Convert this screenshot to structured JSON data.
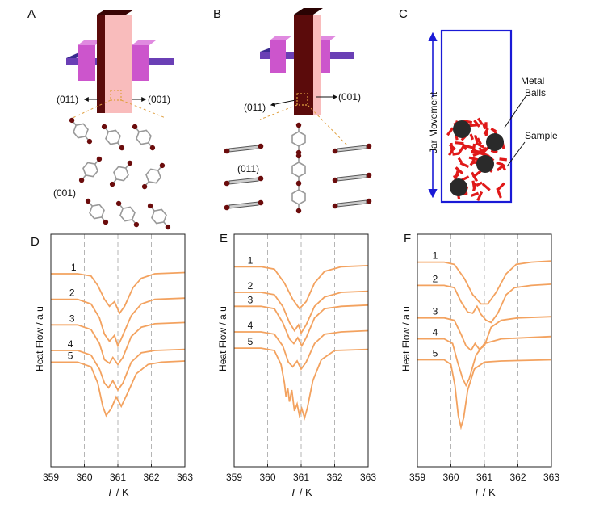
{
  "panels_top": {
    "A": {
      "letter": "A",
      "dir_left": "(011)",
      "dir_right": "(001)",
      "plane_label": "(001)"
    },
    "B": {
      "letter": "B",
      "dir_left": "(011)",
      "dir_right": "(001)",
      "plane_label": "(011)"
    },
    "C": {
      "letter": "C",
      "jar_label": "Jar Movement",
      "balls_label_line1": "Metal",
      "balls_label_line2": "Balls",
      "sample_label": "Sample"
    }
  },
  "colors": {
    "curve": "#f3a25f",
    "crystal_light": "#f9bcbc",
    "crystal_dark": "#5b0b0b",
    "holder_purple": "#6a3fb5",
    "holder_pink": "#cc55cc",
    "jar_border": "#1a1ad6",
    "arrow_blue": "#1a1ad6",
    "sample_red": "#e01919",
    "ball": "#2a2a2a"
  },
  "chart_data": [
    {
      "panel": "D",
      "type": "line",
      "xlabel_italic": "T",
      "xlabel_rest": " / K",
      "ylabel": "Heat Flow / a.u",
      "xticks": [
        "359",
        "360",
        "361",
        "362",
        "363"
      ],
      "xlim": [
        359,
        363
      ],
      "grid_x": [
        360,
        361,
        362
      ],
      "series": [
        {
          "name": "1",
          "label_x": 359.6,
          "y_base": 0.83,
          "points": [
            [
              359,
              0.83
            ],
            [
              359.8,
              0.83
            ],
            [
              360.2,
              0.82
            ],
            [
              360.4,
              0.78
            ],
            [
              360.6,
              0.72
            ],
            [
              360.75,
              0.69
            ],
            [
              360.9,
              0.71
            ],
            [
              361.05,
              0.66
            ],
            [
              361.2,
              0.69
            ],
            [
              361.45,
              0.77
            ],
            [
              361.7,
              0.81
            ],
            [
              362.1,
              0.83
            ],
            [
              363,
              0.835
            ]
          ]
        },
        {
          "name": "2",
          "label_x": 359.55,
          "y_base": 0.72,
          "points": [
            [
              359,
              0.72
            ],
            [
              359.8,
              0.72
            ],
            [
              360.2,
              0.7
            ],
            [
              360.45,
              0.64
            ],
            [
              360.6,
              0.57
            ],
            [
              360.75,
              0.54
            ],
            [
              360.9,
              0.565
            ],
            [
              361.0,
              0.52
            ],
            [
              361.1,
              0.55
            ],
            [
              361.4,
              0.65
            ],
            [
              361.7,
              0.7
            ],
            [
              362.1,
              0.72
            ],
            [
              363,
              0.725
            ]
          ]
        },
        {
          "name": "3",
          "label_x": 359.55,
          "y_base": 0.61,
          "points": [
            [
              359,
              0.61
            ],
            [
              359.8,
              0.61
            ],
            [
              360.2,
              0.59
            ],
            [
              360.45,
              0.53
            ],
            [
              360.6,
              0.46
            ],
            [
              360.75,
              0.445
            ],
            [
              360.85,
              0.47
            ],
            [
              361.0,
              0.44
            ],
            [
              361.15,
              0.47
            ],
            [
              361.4,
              0.56
            ],
            [
              361.7,
              0.6
            ],
            [
              362.1,
              0.615
            ],
            [
              363,
              0.62
            ]
          ]
        },
        {
          "name": "4",
          "label_x": 359.5,
          "y_base": 0.5,
          "points": [
            [
              359,
              0.5
            ],
            [
              359.8,
              0.5
            ],
            [
              360.2,
              0.48
            ],
            [
              360.45,
              0.42
            ],
            [
              360.6,
              0.36
            ],
            [
              360.72,
              0.34
            ],
            [
              360.85,
              0.37
            ],
            [
              361.0,
              0.33
            ],
            [
              361.15,
              0.36
            ],
            [
              361.4,
              0.45
            ],
            [
              361.7,
              0.49
            ],
            [
              362.1,
              0.5
            ],
            [
              363,
              0.505
            ]
          ]
        },
        {
          "name": "5",
          "label_x": 359.5,
          "y_base": 0.45,
          "points": [
            [
              359,
              0.45
            ],
            [
              359.8,
              0.45
            ],
            [
              360.2,
              0.43
            ],
            [
              360.4,
              0.36
            ],
            [
              360.55,
              0.26
            ],
            [
              360.65,
              0.22
            ],
            [
              360.8,
              0.25
            ],
            [
              360.95,
              0.3
            ],
            [
              361.1,
              0.26
            ],
            [
              361.3,
              0.32
            ],
            [
              361.55,
              0.4
            ],
            [
              361.9,
              0.44
            ],
            [
              362.3,
              0.45
            ],
            [
              363,
              0.455
            ]
          ]
        }
      ]
    },
    {
      "panel": "E",
      "type": "line",
      "xlabel_italic": "T",
      "xlabel_rest": " / K",
      "ylabel": "Heat Flow / a.u",
      "xticks": [
        "359",
        "360",
        "361",
        "362",
        "363"
      ],
      "xlim": [
        359,
        363
      ],
      "grid_x": [
        360,
        361,
        362
      ],
      "series": [
        {
          "name": "1",
          "label_x": 359.4,
          "y_base": 0.86,
          "points": [
            [
              359,
              0.86
            ],
            [
              359.8,
              0.86
            ],
            [
              360.2,
              0.85
            ],
            [
              360.5,
              0.79
            ],
            [
              360.75,
              0.72
            ],
            [
              360.95,
              0.68
            ],
            [
              361.15,
              0.71
            ],
            [
              361.4,
              0.79
            ],
            [
              361.7,
              0.84
            ],
            [
              362.2,
              0.86
            ],
            [
              363,
              0.865
            ]
          ]
        },
        {
          "name": "2",
          "label_x": 359.4,
          "y_base": 0.75,
          "points": [
            [
              359,
              0.75
            ],
            [
              359.8,
              0.75
            ],
            [
              360.2,
              0.74
            ],
            [
              360.45,
              0.69
            ],
            [
              360.65,
              0.62
            ],
            [
              360.8,
              0.585
            ],
            [
              360.92,
              0.61
            ],
            [
              361.0,
              0.575
            ],
            [
              361.15,
              0.61
            ],
            [
              361.4,
              0.69
            ],
            [
              361.7,
              0.73
            ],
            [
              362.2,
              0.75
            ],
            [
              363,
              0.755
            ]
          ]
        },
        {
          "name": "3",
          "label_x": 359.4,
          "y_base": 0.69,
          "points": [
            [
              359,
              0.69
            ],
            [
              359.8,
              0.69
            ],
            [
              360.2,
              0.68
            ],
            [
              360.45,
              0.62
            ],
            [
              360.65,
              0.55
            ],
            [
              360.78,
              0.53
            ],
            [
              360.9,
              0.555
            ],
            [
              361.02,
              0.52
            ],
            [
              361.15,
              0.555
            ],
            [
              361.4,
              0.64
            ],
            [
              361.7,
              0.68
            ],
            [
              362.2,
              0.69
            ],
            [
              363,
              0.695
            ]
          ]
        },
        {
          "name": "4",
          "label_x": 359.4,
          "y_base": 0.58,
          "points": [
            [
              359,
              0.58
            ],
            [
              359.8,
              0.58
            ],
            [
              360.2,
              0.57
            ],
            [
              360.45,
              0.52
            ],
            [
              360.62,
              0.45
            ],
            [
              360.75,
              0.43
            ],
            [
              360.88,
              0.455
            ],
            [
              361.0,
              0.42
            ],
            [
              361.15,
              0.45
            ],
            [
              361.4,
              0.53
            ],
            [
              361.7,
              0.57
            ],
            [
              362.2,
              0.58
            ],
            [
              363,
              0.585
            ]
          ]
        },
        {
          "name": "5",
          "label_x": 359.4,
          "y_base": 0.51,
          "points": [
            [
              359,
              0.51
            ],
            [
              359.8,
              0.51
            ],
            [
              360.2,
              0.5
            ],
            [
              360.4,
              0.44
            ],
            [
              360.5,
              0.36
            ],
            [
              360.55,
              0.3
            ],
            [
              360.6,
              0.34
            ],
            [
              360.65,
              0.28
            ],
            [
              360.72,
              0.33
            ],
            [
              360.8,
              0.24
            ],
            [
              360.88,
              0.27
            ],
            [
              360.95,
              0.22
            ],
            [
              361.02,
              0.25
            ],
            [
              361.1,
              0.21
            ],
            [
              361.18,
              0.25
            ],
            [
              361.35,
              0.37
            ],
            [
              361.6,
              0.46
            ],
            [
              362.0,
              0.5
            ],
            [
              363,
              0.505
            ]
          ]
        }
      ]
    },
    {
      "panel": "F",
      "type": "line",
      "xlabel_italic": "T",
      "xlabel_rest": " / K",
      "ylabel": "Heat Flow / a.u",
      "xticks": [
        "359",
        "360",
        "361",
        "362",
        "363"
      ],
      "xlim": [
        359,
        363
      ],
      "grid_x": [
        360,
        361,
        362
      ],
      "series": [
        {
          "name": "1",
          "label_x": 359.45,
          "y_base": 0.88,
          "points": [
            [
              359,
              0.88
            ],
            [
              359.8,
              0.88
            ],
            [
              360.1,
              0.87
            ],
            [
              360.4,
              0.81
            ],
            [
              360.65,
              0.74
            ],
            [
              360.9,
              0.7
            ],
            [
              361.1,
              0.7
            ],
            [
              361.35,
              0.75
            ],
            [
              361.65,
              0.83
            ],
            [
              361.95,
              0.87
            ],
            [
              362.4,
              0.88
            ],
            [
              363,
              0.885
            ]
          ]
        },
        {
          "name": "2",
          "label_x": 359.45,
          "y_base": 0.78,
          "points": [
            [
              359,
              0.78
            ],
            [
              359.8,
              0.78
            ],
            [
              360.1,
              0.77
            ],
            [
              360.3,
              0.71
            ],
            [
              360.5,
              0.665
            ],
            [
              360.65,
              0.66
            ],
            [
              360.78,
              0.69
            ],
            [
              360.9,
              0.655
            ],
            [
              361.05,
              0.63
            ],
            [
              361.2,
              0.62
            ],
            [
              361.4,
              0.66
            ],
            [
              361.65,
              0.74
            ],
            [
              361.9,
              0.77
            ],
            [
              362.4,
              0.78
            ],
            [
              363,
              0.785
            ]
          ]
        },
        {
          "name": "3",
          "label_x": 359.45,
          "y_base": 0.64,
          "points": [
            [
              359,
              0.64
            ],
            [
              359.8,
              0.64
            ],
            [
              360.1,
              0.63
            ],
            [
              360.3,
              0.57
            ],
            [
              360.45,
              0.52
            ],
            [
              360.6,
              0.5
            ],
            [
              360.72,
              0.53
            ],
            [
              360.85,
              0.505
            ],
            [
              361.0,
              0.52
            ],
            [
              361.2,
              0.6
            ],
            [
              361.5,
              0.63
            ],
            [
              362.0,
              0.64
            ],
            [
              363,
              0.645
            ]
          ]
        },
        {
          "name": "4",
          "label_x": 359.45,
          "y_base": 0.55,
          "points": [
            [
              359,
              0.55
            ],
            [
              359.8,
              0.55
            ],
            [
              360.05,
              0.53
            ],
            [
              360.2,
              0.45
            ],
            [
              360.35,
              0.38
            ],
            [
              360.45,
              0.35
            ],
            [
              360.55,
              0.38
            ],
            [
              360.75,
              0.48
            ],
            [
              361.0,
              0.53
            ],
            [
              361.5,
              0.55
            ],
            [
              363,
              0.56
            ]
          ]
        },
        {
          "name": "5",
          "label_x": 359.45,
          "y_base": 0.46,
          "points": [
            [
              359,
              0.46
            ],
            [
              359.8,
              0.46
            ],
            [
              360.0,
              0.44
            ],
            [
              360.12,
              0.35
            ],
            [
              360.22,
              0.22
            ],
            [
              360.3,
              0.17
            ],
            [
              360.38,
              0.21
            ],
            [
              360.5,
              0.33
            ],
            [
              360.7,
              0.42
            ],
            [
              361.0,
              0.45
            ],
            [
              361.5,
              0.455
            ],
            [
              363,
              0.46
            ]
          ]
        }
      ]
    }
  ]
}
